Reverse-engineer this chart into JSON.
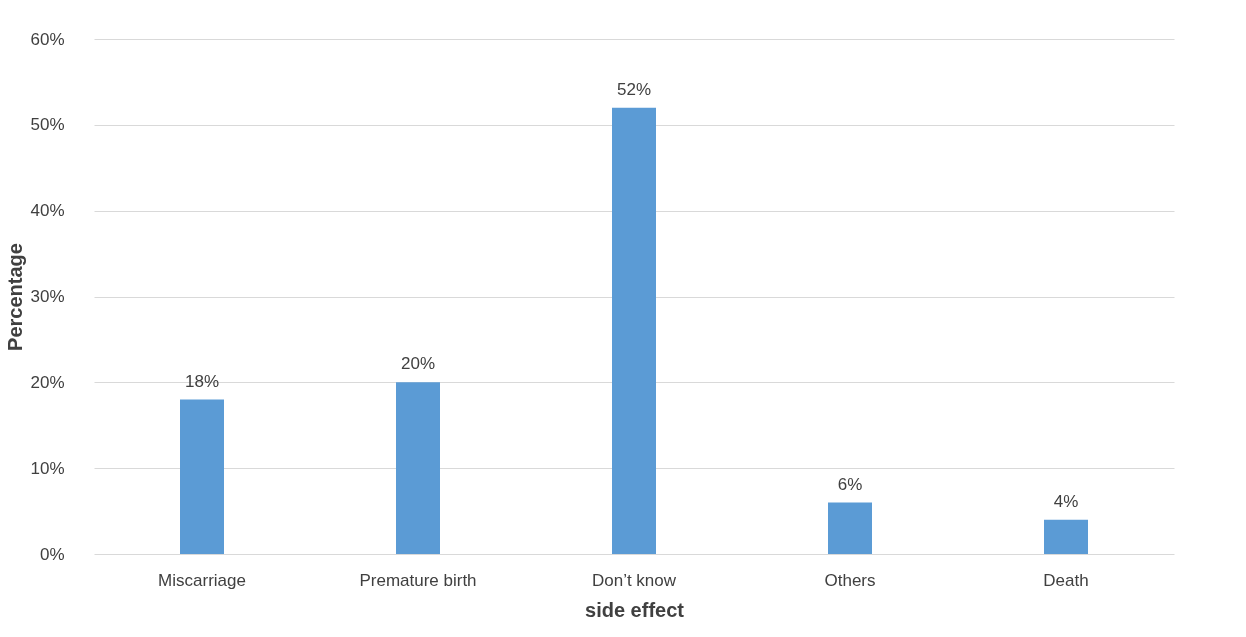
{
  "chart_data": {
    "type": "bar",
    "xlabel": "side effect",
    "ylabel": "Percentage",
    "categories": [
      "Miscarriage",
      "Premature birth",
      "Don’t know",
      "Others",
      "Death"
    ],
    "values": [
      18,
      20,
      52,
      6,
      4
    ],
    "value_labels": [
      "18%",
      "20%",
      "52%",
      "6%",
      "4%"
    ],
    "color": "#5b9bd5",
    "ylim": [
      0,
      60
    ],
    "yticks": [
      {
        "value": 0,
        "label": "0%"
      },
      {
        "value": 10,
        "label": "10%"
      },
      {
        "value": 20,
        "label": "20%"
      },
      {
        "value": 30,
        "label": "30%"
      },
      {
        "value": 40,
        "label": "40%"
      },
      {
        "value": 50,
        "label": "50%"
      },
      {
        "value": 60,
        "label": "60%"
      }
    ],
    "grid": "y"
  }
}
